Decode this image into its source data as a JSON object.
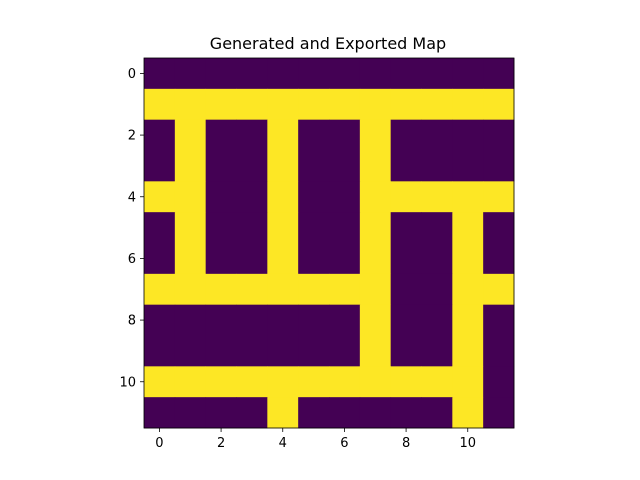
{
  "chart_data": {
    "type": "heatmap",
    "title": "Generated and Exported Map",
    "xlabel": "",
    "ylabel": "",
    "xlim": [
      -0.5,
      11.5
    ],
    "ylim": [
      11.5,
      -0.5
    ],
    "xticks": [
      0,
      2,
      4,
      6,
      8,
      10
    ],
    "yticks": [
      0,
      2,
      4,
      6,
      8,
      10
    ],
    "colormap": "viridis",
    "colors": {
      "low": "#440154",
      "high": "#fde725"
    },
    "grid": false,
    "legend": "none",
    "rows": 12,
    "cols": 12,
    "values": [
      [
        0,
        0,
        0,
        0,
        0,
        0,
        0,
        0,
        0,
        0,
        0,
        0
      ],
      [
        1,
        1,
        1,
        1,
        1,
        1,
        1,
        1,
        1,
        1,
        1,
        1
      ],
      [
        0,
        1,
        0,
        0,
        1,
        0,
        0,
        1,
        0,
        0,
        0,
        0
      ],
      [
        0,
        1,
        0,
        0,
        1,
        0,
        0,
        1,
        0,
        0,
        0,
        0
      ],
      [
        1,
        1,
        0,
        0,
        1,
        0,
        0,
        1,
        1,
        1,
        1,
        1
      ],
      [
        0,
        1,
        0,
        0,
        1,
        0,
        0,
        1,
        0,
        0,
        1,
        0
      ],
      [
        0,
        1,
        0,
        0,
        1,
        0,
        0,
        1,
        0,
        0,
        1,
        0
      ],
      [
        1,
        1,
        1,
        1,
        1,
        1,
        1,
        1,
        0,
        0,
        1,
        1
      ],
      [
        0,
        0,
        0,
        0,
        0,
        0,
        0,
        1,
        0,
        0,
        1,
        0
      ],
      [
        0,
        0,
        0,
        0,
        0,
        0,
        0,
        1,
        0,
        0,
        1,
        0
      ],
      [
        1,
        1,
        1,
        1,
        1,
        1,
        1,
        1,
        1,
        1,
        1,
        0
      ],
      [
        0,
        0,
        0,
        0,
        1,
        0,
        0,
        0,
        0,
        0,
        1,
        0
      ]
    ]
  }
}
